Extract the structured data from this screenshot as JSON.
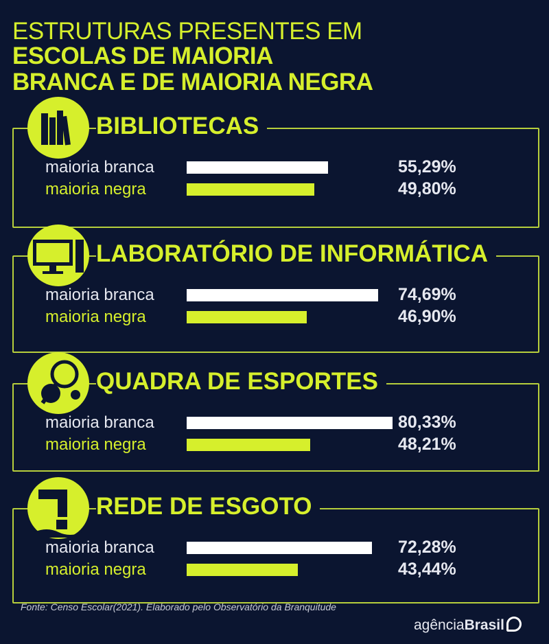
{
  "title": {
    "line1": "ESTRUTURAS PRESENTES EM",
    "line2": "ESCOLAS DE MAIORIA",
    "line3": "BRANCA E DE MAIORIA NEGRA"
  },
  "colors": {
    "background": "#0b1530",
    "accent": "#d6ef2c",
    "white": "#ffffff"
  },
  "chart_data": {
    "type": "bar",
    "orientation": "horizontal",
    "title": "ESTRUTURAS PRESENTES EM ESCOLAS DE MAIORIA BRANCA E DE MAIORIA NEGRA",
    "series_names": [
      "maioria branca",
      "maioria negra"
    ],
    "groups": [
      {
        "name": "BIBLIOTECAS",
        "icon": "books-icon",
        "labels": [
          "maioria branca",
          "maioria negra"
        ],
        "values": [
          55.29,
          49.8
        ],
        "display": [
          "55,29%",
          "49,80%"
        ]
      },
      {
        "name": "LABORATÓRIO DE INFORMÁTICA",
        "icon": "computer-icon",
        "labels": [
          "maioria branca",
          "maioria negra"
        ],
        "values": [
          74.69,
          46.9
        ],
        "display": [
          "74,69%",
          "46,90%"
        ]
      },
      {
        "name": "QUADRA DE ESPORTES",
        "icon": "sports-icon",
        "labels": [
          "maioria branca",
          "maioria negra"
        ],
        "values": [
          80.33,
          48.21
        ],
        "display": [
          "80,33%",
          "48,21%"
        ]
      },
      {
        "name": "REDE DE ESGOTO",
        "icon": "sewer-pipe-icon",
        "labels": [
          "maioria branca",
          "maioria negra"
        ],
        "values": [
          72.28,
          43.44
        ],
        "display": [
          "72,28%",
          "43,44%"
        ]
      }
    ],
    "unit": "%"
  },
  "footer": {
    "source": "Fonte: Censo Escolar(2021). Elaborado pelo Observatório da Branquitude",
    "logo_light": "agência",
    "logo_bold": "Brasil"
  }
}
